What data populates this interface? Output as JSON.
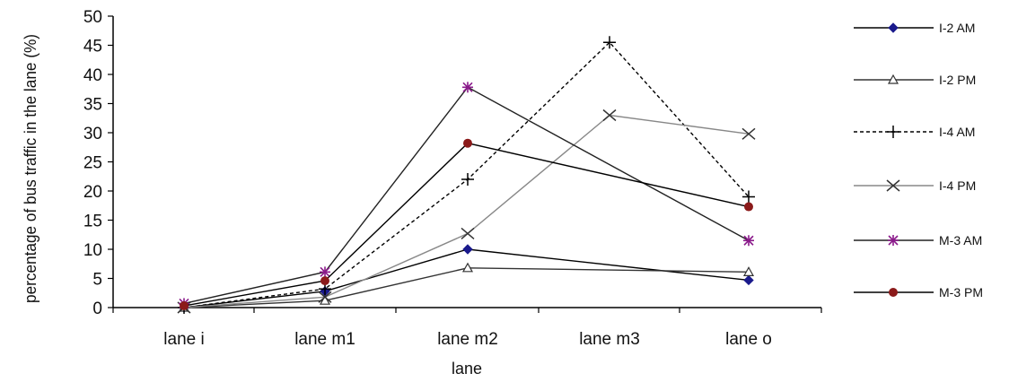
{
  "chart_data": {
    "type": "line",
    "xlabel": "lane",
    "ylabel": "percentage of bus traffic in the lane (%)",
    "categories": [
      "lane i",
      "lane m1",
      "lane m2",
      "lane m3",
      "lane o"
    ],
    "ylim": [
      0,
      50
    ],
    "yticks": [
      0,
      5,
      10,
      15,
      20,
      25,
      30,
      35,
      40,
      45,
      50
    ],
    "grid": false,
    "legend_position": "right",
    "series": [
      {
        "name": "I-2 AM",
        "values": [
          0,
          2.8,
          10,
          null,
          4.7
        ],
        "color": "#000000",
        "marker": "diamond",
        "marker_color": "#1a1a8c",
        "dash": "solid"
      },
      {
        "name": "I-2 PM",
        "values": [
          0,
          1.2,
          6.8,
          null,
          6.1
        ],
        "color": "#333333",
        "marker": "triangle",
        "marker_color": "#ffffff",
        "dash": "solid"
      },
      {
        "name": "I-4 AM",
        "values": [
          0,
          3.2,
          22,
          45.5,
          19
        ],
        "color": "#000000",
        "marker": "plus",
        "marker_color": "#000000",
        "dash": "dashed"
      },
      {
        "name": "I-4 PM",
        "values": [
          0,
          1.8,
          12.7,
          33,
          29.8
        ],
        "color": "#888888",
        "marker": "x",
        "marker_color": "#333333",
        "dash": "solid"
      },
      {
        "name": "M-3 AM",
        "values": [
          0.7,
          6.1,
          37.8,
          null,
          11.5
        ],
        "color": "#222222",
        "marker": "star",
        "marker_color": "#8b1a8b",
        "dash": "solid"
      },
      {
        "name": "M-3 PM",
        "values": [
          0.3,
          4.6,
          28.2,
          null,
          17.3
        ],
        "color": "#000000",
        "marker": "circle",
        "marker_color": "#8b1a1a",
        "dash": "solid"
      }
    ]
  }
}
